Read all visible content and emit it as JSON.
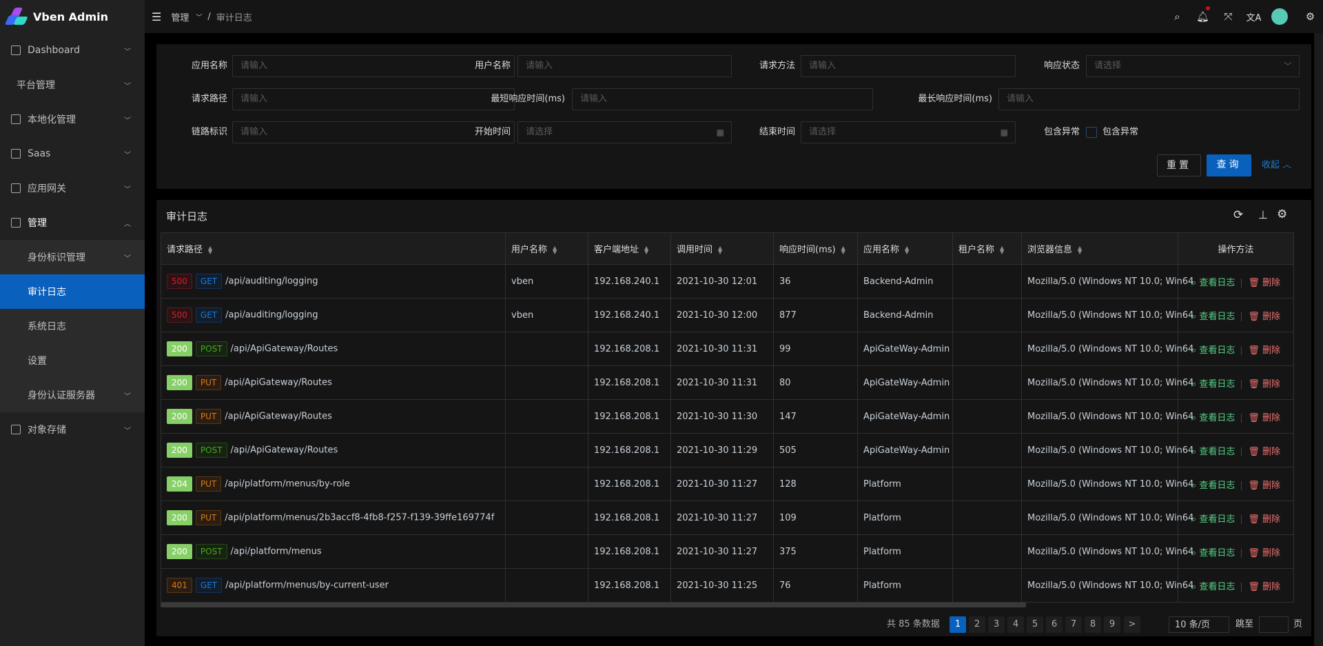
{
  "app": {
    "title": "Vben Admin"
  },
  "sidebar": {
    "items": [
      {
        "label": "Dashboard",
        "icon": "dashboard-icon"
      },
      {
        "label": "平台管理",
        "icon": ""
      },
      {
        "label": "本地化管理",
        "icon": "localization-icon"
      },
      {
        "label": "Saas",
        "icon": "saas-icon"
      },
      {
        "label": "应用网关",
        "icon": "gateway-icon"
      },
      {
        "label": "管理",
        "icon": "manage-icon"
      },
      {
        "label": "身份标识管理"
      },
      {
        "label": "审计日志"
      },
      {
        "label": "系统日志"
      },
      {
        "label": "设置"
      },
      {
        "label": "身份认证服务器"
      },
      {
        "label": "对象存储",
        "icon": "file-icon"
      }
    ]
  },
  "header": {
    "breadcrumb": [
      "管理",
      "审计日志"
    ]
  },
  "search": {
    "app_name": {
      "label": "应用名称",
      "placeholder": "请输入"
    },
    "user_name": {
      "label": "用户名称",
      "placeholder": "请输入"
    },
    "method": {
      "label": "请求方法",
      "placeholder": "请输入"
    },
    "status": {
      "label": "响应状态",
      "placeholder": "请选择"
    },
    "path": {
      "label": "请求路径",
      "placeholder": "请输入"
    },
    "min_time": {
      "label": "最短响应时间(ms)",
      "placeholder": "请输入"
    },
    "max_time": {
      "label": "最长响应时间(ms)",
      "placeholder": "请输入"
    },
    "trace": {
      "label": "链路标识",
      "placeholder": "请输入"
    },
    "start": {
      "label": "开始时间",
      "placeholder": "请选择"
    },
    "end": {
      "label": "结束时间",
      "placeholder": "请选择"
    },
    "has_exception": {
      "label": "包含异常",
      "checkbox_label": "包含异常",
      "checked": false
    },
    "reset": "重置",
    "query": "查询",
    "collapse": "收起"
  },
  "table": {
    "title": "审计日志",
    "columns": [
      "请求路径",
      "用户名称",
      "客户端地址",
      "调用时间",
      "响应时间(ms)",
      "应用名称",
      "租户名称",
      "浏览器信息",
      "操作方法"
    ],
    "actions": {
      "view": "查看日志",
      "delete": "删除"
    },
    "rows": [
      {
        "status": "500",
        "method": "GET",
        "path": "/api/auditing/logging",
        "user": "vben",
        "ip": "192.168.240.1",
        "time": "2021-10-30 12:01",
        "duration": "36",
        "app": "Backend-Admin",
        "tenant": "",
        "browser": "Mozilla/5.0 (Windows NT 10.0; Win64"
      },
      {
        "status": "500",
        "method": "GET",
        "path": "/api/auditing/logging",
        "user": "vben",
        "ip": "192.168.240.1",
        "time": "2021-10-30 12:00",
        "duration": "877",
        "app": "Backend-Admin",
        "tenant": "",
        "browser": "Mozilla/5.0 (Windows NT 10.0; Win64"
      },
      {
        "status": "200",
        "method": "POST",
        "path": "/api/ApiGateway/Routes",
        "user": "",
        "ip": "192.168.208.1",
        "time": "2021-10-30 11:31",
        "duration": "99",
        "app": "ApiGateWay-Admin",
        "tenant": "",
        "browser": "Mozilla/5.0 (Windows NT 10.0; Win64"
      },
      {
        "status": "200",
        "method": "PUT",
        "path": "/api/ApiGateway/Routes",
        "user": "",
        "ip": "192.168.208.1",
        "time": "2021-10-30 11:31",
        "duration": "80",
        "app": "ApiGateWay-Admin",
        "tenant": "",
        "browser": "Mozilla/5.0 (Windows NT 10.0; Win64"
      },
      {
        "status": "200",
        "method": "PUT",
        "path": "/api/ApiGateway/Routes",
        "user": "",
        "ip": "192.168.208.1",
        "time": "2021-10-30 11:30",
        "duration": "147",
        "app": "ApiGateWay-Admin",
        "tenant": "",
        "browser": "Mozilla/5.0 (Windows NT 10.0; Win64"
      },
      {
        "status": "200",
        "method": "POST",
        "path": "/api/ApiGateway/Routes",
        "user": "",
        "ip": "192.168.208.1",
        "time": "2021-10-30 11:29",
        "duration": "505",
        "app": "ApiGateWay-Admin",
        "tenant": "",
        "browser": "Mozilla/5.0 (Windows NT 10.0; Win64"
      },
      {
        "status": "204",
        "method": "PUT",
        "path": "/api/platform/menus/by-role",
        "user": "",
        "ip": "192.168.208.1",
        "time": "2021-10-30 11:27",
        "duration": "128",
        "app": "Platform",
        "tenant": "",
        "browser": "Mozilla/5.0 (Windows NT 10.0; Win64"
      },
      {
        "status": "200",
        "method": "PUT",
        "path": "/api/platform/menus/2b3accf8-4fb8-f257-f139-39ffe169774f",
        "user": "",
        "ip": "192.168.208.1",
        "time": "2021-10-30 11:27",
        "duration": "109",
        "app": "Platform",
        "tenant": "",
        "browser": "Mozilla/5.0 (Windows NT 10.0; Win64"
      },
      {
        "status": "200",
        "method": "POST",
        "path": "/api/platform/menus",
        "user": "",
        "ip": "192.168.208.1",
        "time": "2021-10-30 11:27",
        "duration": "375",
        "app": "Platform",
        "tenant": "",
        "browser": "Mozilla/5.0 (Windows NT 10.0; Win64"
      },
      {
        "status": "401",
        "method": "GET",
        "path": "/api/platform/menus/by-current-user",
        "user": "",
        "ip": "192.168.208.1",
        "time": "2021-10-30 11:25",
        "duration": "76",
        "app": "Platform",
        "tenant": "",
        "browser": "Mozilla/5.0 (Windows NT 10.0; Win64"
      }
    ]
  },
  "pagination": {
    "total_text": "共 85 条数据",
    "pages": [
      "1",
      "2",
      "3",
      "4",
      "5",
      "6",
      "7",
      "8",
      "9"
    ],
    "current": "1",
    "next": ">",
    "page_size": "10 条/页",
    "jump_label": "跳至",
    "jump_suffix": "页"
  },
  "colors": {
    "accent": "#0960bd",
    "view": "#55d187",
    "delete": "#ed6f6f",
    "ok": "#87d068"
  }
}
